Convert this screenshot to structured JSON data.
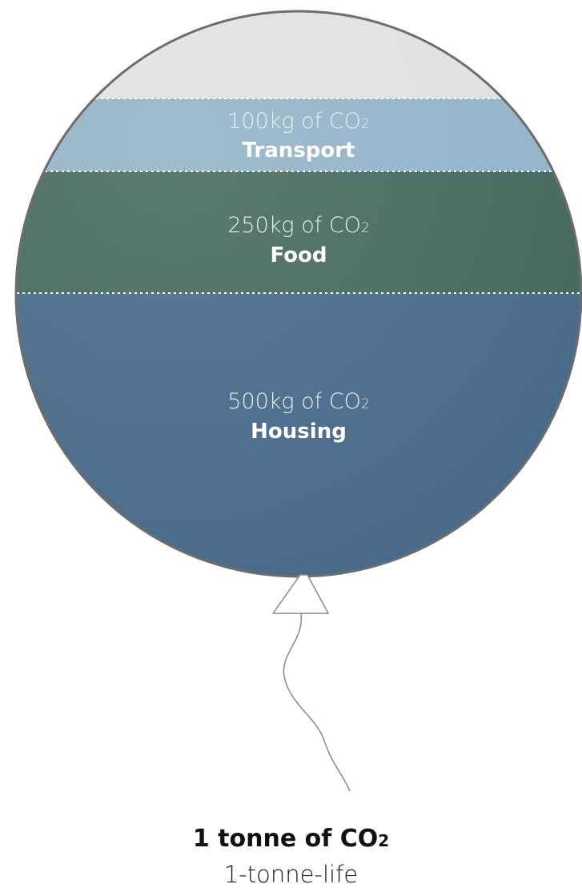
{
  "diagram": {
    "segments": [
      {
        "id": "transport",
        "amount_text": "100kg of CO",
        "subscript": "2",
        "label": "Transport",
        "value_kg": 100,
        "color": "#93b3c8"
      },
      {
        "id": "food",
        "amount_text": "250kg of CO",
        "subscript": "2",
        "label": "Food",
        "value_kg": 250,
        "color": "#46695f"
      },
      {
        "id": "housing",
        "amount_text": "500kg of CO",
        "subscript": "2",
        "label": "Housing",
        "value_kg": 500,
        "color": "#4a6a8a"
      }
    ],
    "empty_color": "#e1e1e1",
    "caption": {
      "total_text": "1 tonne of CO",
      "total_subscript": "2",
      "subtitle": "1-tonne-life"
    }
  }
}
